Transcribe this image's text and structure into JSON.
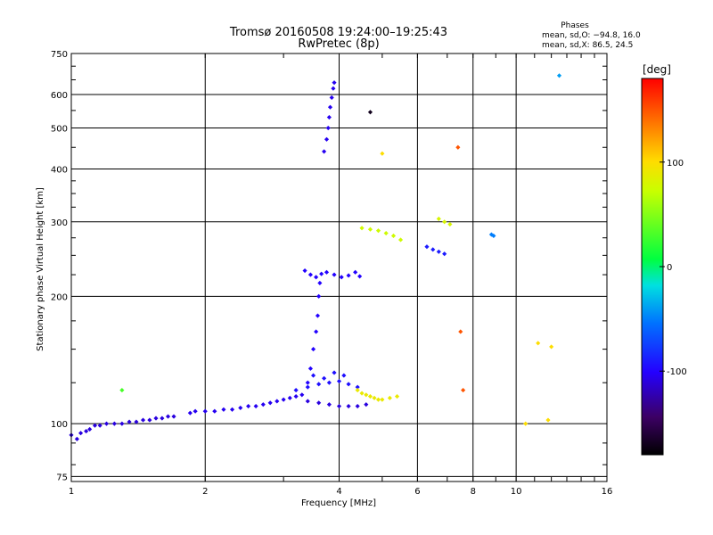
{
  "chart_data": {
    "type": "scatter",
    "title": "Tromsø 20160508 19:24:00–19:25:43",
    "subtitle": "RwPretec (8p)",
    "stats": {
      "heading": "Phases",
      "line1": "mean, sd,O: −94.8, 16.0",
      "line2": "mean, sd,X:  86.5, 24.5"
    },
    "xlabel": "Frequency [MHz]",
    "ylabel": "Stationary phase Virtual Height [km]",
    "x_scale": "log",
    "y_scale": "log",
    "xlim": [
      1,
      16
    ],
    "ylim": [
      73,
      750
    ],
    "x_ticks": [
      {
        "value": 1,
        "label": "1"
      },
      {
        "value": 2,
        "label": "2"
      },
      {
        "value": 4,
        "label": "4"
      },
      {
        "value": 6,
        "label": "6"
      },
      {
        "value": 8,
        "label": "8"
      },
      {
        "value": 10,
        "label": "10"
      },
      {
        "value": 16,
        "label": "16"
      }
    ],
    "y_ticks": [
      {
        "value": 75,
        "label": "75"
      },
      {
        "value": 100,
        "label": "100"
      },
      {
        "value": 200,
        "label": "200"
      },
      {
        "value": 300,
        "label": "300"
      },
      {
        "value": 400,
        "label": "400"
      },
      {
        "value": 500,
        "label": "500"
      },
      {
        "value": 600,
        "label": "600"
      },
      {
        "value": 750,
        "label": "750"
      }
    ],
    "grid": true,
    "colorbar": {
      "label": "[deg]",
      "range": [
        -180,
        180
      ],
      "ticks": [
        {
          "value": 100,
          "label": "100"
        },
        {
          "value": 0,
          "label": "0"
        },
        {
          "value": -100,
          "label": "-100"
        }
      ]
    },
    "traces": [
      {
        "phase": -110,
        "points": [
          [
            1.0,
            94
          ],
          [
            1.03,
            92
          ],
          [
            1.05,
            95
          ],
          [
            1.08,
            96
          ],
          [
            1.1,
            97
          ],
          [
            1.13,
            99
          ],
          [
            1.16,
            99
          ],
          [
            1.2,
            100
          ],
          [
            1.25,
            100
          ],
          [
            1.3,
            100
          ],
          [
            1.35,
            101
          ],
          [
            1.4,
            101
          ],
          [
            1.45,
            102
          ],
          [
            1.5,
            102
          ],
          [
            1.55,
            103
          ],
          [
            1.6,
            103
          ],
          [
            1.65,
            104
          ],
          [
            1.7,
            104
          ]
        ]
      },
      {
        "phase": -105,
        "points": [
          [
            1.85,
            106
          ],
          [
            1.9,
            107
          ],
          [
            2.0,
            107
          ],
          [
            2.1,
            107
          ],
          [
            2.2,
            108
          ],
          [
            2.3,
            108
          ],
          [
            2.4,
            109
          ],
          [
            2.5,
            110
          ],
          [
            2.6,
            110
          ],
          [
            2.7,
            111
          ],
          [
            2.8,
            112
          ],
          [
            2.9,
            113
          ],
          [
            3.0,
            114
          ],
          [
            3.1,
            115
          ],
          [
            3.2,
            116
          ],
          [
            3.3,
            117
          ]
        ]
      },
      {
        "phase": -100,
        "points": [
          [
            3.4,
            125
          ],
          [
            3.45,
            135
          ],
          [
            3.5,
            150
          ],
          [
            3.55,
            165
          ],
          [
            3.58,
            180
          ],
          [
            3.6,
            200
          ],
          [
            3.62,
            215
          ]
        ]
      },
      {
        "phase": -95,
        "points": [
          [
            3.2,
            120
          ],
          [
            3.4,
            122
          ],
          [
            3.6,
            124
          ],
          [
            3.8,
            125
          ],
          [
            4.0,
            126
          ],
          [
            4.2,
            124
          ],
          [
            4.4,
            122
          ],
          [
            3.5,
            130
          ],
          [
            3.7,
            128
          ],
          [
            3.9,
            132
          ],
          [
            4.1,
            130
          ]
        ]
      },
      {
        "phase": -110,
        "points": [
          [
            3.4,
            113
          ],
          [
            3.6,
            112
          ],
          [
            3.8,
            111
          ],
          [
            4.0,
            110
          ],
          [
            4.2,
            110
          ],
          [
            4.4,
            110
          ],
          [
            4.6,
            111
          ]
        ]
      },
      {
        "phase": -100,
        "points": [
          [
            3.35,
            230
          ],
          [
            3.45,
            225
          ],
          [
            3.55,
            222
          ],
          [
            3.65,
            226
          ],
          [
            3.75,
            228
          ],
          [
            3.9,
            225
          ],
          [
            4.05,
            222
          ],
          [
            4.2,
            224
          ],
          [
            4.35,
            228
          ],
          [
            4.45,
            223
          ]
        ]
      },
      {
        "phase": -105,
        "points": [
          [
            3.7,
            440
          ],
          [
            3.75,
            470
          ],
          [
            3.78,
            500
          ],
          [
            3.8,
            530
          ],
          [
            3.82,
            560
          ],
          [
            3.85,
            590
          ],
          [
            3.88,
            620
          ],
          [
            3.9,
            640
          ]
        ]
      },
      {
        "phase": 90,
        "points": [
          [
            4.4,
            120
          ],
          [
            4.5,
            118
          ],
          [
            4.6,
            117
          ],
          [
            4.7,
            116
          ],
          [
            4.8,
            115
          ],
          [
            4.9,
            114
          ],
          [
            5.0,
            114
          ],
          [
            5.2,
            115
          ],
          [
            5.4,
            116
          ]
        ]
      },
      {
        "phase": 75,
        "points": [
          [
            4.5,
            290
          ],
          [
            4.7,
            288
          ],
          [
            4.9,
            286
          ],
          [
            5.1,
            282
          ],
          [
            5.3,
            278
          ],
          [
            5.5,
            272
          ]
        ]
      },
      {
        "phase": -90,
        "points": [
          [
            6.3,
            262
          ],
          [
            6.5,
            258
          ],
          [
            6.7,
            255
          ],
          [
            6.9,
            252
          ]
        ]
      },
      {
        "phase": 80,
        "points": [
          [
            6.7,
            305
          ],
          [
            6.9,
            300
          ],
          [
            7.1,
            296
          ]
        ]
      },
      {
        "phase": -50,
        "points": [
          [
            8.8,
            280
          ],
          [
            8.9,
            278
          ]
        ]
      },
      {
        "phase": 150,
        "points": [
          [
            7.4,
            450
          ],
          [
            7.5,
            165
          ],
          [
            7.6,
            120
          ]
        ]
      },
      {
        "phase": 100,
        "points": [
          [
            5.0,
            435
          ],
          [
            10.5,
            100
          ],
          [
            11.8,
            102
          ],
          [
            11.2,
            155
          ],
          [
            12.0,
            152
          ]
        ]
      },
      {
        "phase": -40,
        "points": [
          [
            12.5,
            665
          ]
        ]
      },
      {
        "phase": -170,
        "points": [
          [
            4.7,
            545
          ]
        ]
      },
      {
        "phase": 30,
        "points": [
          [
            1.3,
            120
          ]
        ]
      }
    ]
  }
}
